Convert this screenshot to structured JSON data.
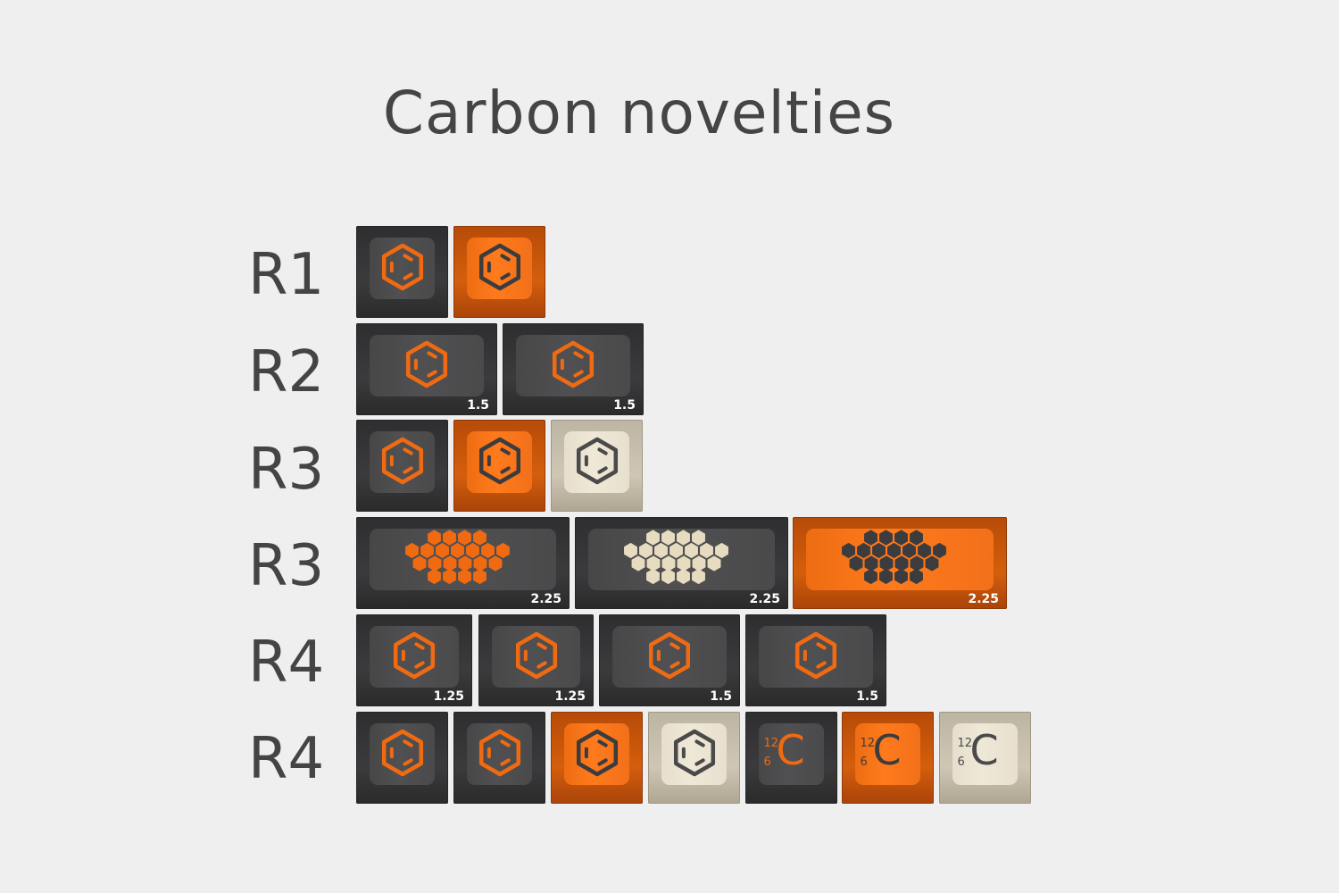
{
  "title": "Carbon novelties",
  "row_labels": [
    "R1",
    "R2",
    "R3",
    "R3",
    "R4",
    "R4"
  ],
  "keys": {
    "r1": [
      {
        "color": "dark",
        "legend": "benzene-hexagon-icon",
        "legend_color": "#f06a12"
      },
      {
        "color": "orange",
        "legend": "benzene-hexagon-icon",
        "legend_color": "#3c3c3e"
      }
    ],
    "r2": [
      {
        "color": "dark",
        "legend": "benzene-hexagon-icon",
        "legend_color": "#f06a12",
        "size": "1.5"
      },
      {
        "color": "dark",
        "legend": "benzene-hexagon-icon",
        "legend_color": "#f06a12",
        "size": "1.5"
      }
    ],
    "r3a": [
      {
        "color": "dark",
        "legend": "benzene-hexagon-icon",
        "legend_color": "#f06a12"
      },
      {
        "color": "orange",
        "legend": "benzene-hexagon-icon",
        "legend_color": "#3c3c3e"
      },
      {
        "color": "cream",
        "legend": "benzene-hexagon-icon",
        "legend_color": "#4a4a4a"
      }
    ],
    "r3b": [
      {
        "color": "dark",
        "legend": "honeycomb-icon",
        "legend_color": "#f06a12",
        "size": "2.25"
      },
      {
        "color": "dark",
        "legend": "honeycomb-icon",
        "legend_color": "#e8dcc0",
        "size": "2.25"
      },
      {
        "color": "orange",
        "legend": "honeycomb-icon",
        "legend_color": "#3c3c3e",
        "size": "2.25"
      }
    ],
    "r4a": [
      {
        "color": "dark",
        "legend": "benzene-hexagon-icon",
        "legend_color": "#f06a12",
        "size": "1.25"
      },
      {
        "color": "dark",
        "legend": "benzene-hexagon-icon",
        "legend_color": "#f06a12",
        "size": "1.25"
      },
      {
        "color": "dark",
        "legend": "benzene-hexagon-icon",
        "legend_color": "#f06a12",
        "size": "1.5"
      },
      {
        "color": "dark",
        "legend": "benzene-hexagon-icon",
        "legend_color": "#f06a12",
        "size": "1.5"
      }
    ],
    "r4b": [
      {
        "color": "dark",
        "legend": "benzene-hexagon-icon",
        "legend_color": "#f06a12"
      },
      {
        "color": "dark",
        "legend": "benzene-hexagon-icon",
        "legend_color": "#f06a12"
      },
      {
        "color": "orange",
        "legend": "benzene-hexagon-icon",
        "legend_color": "#3c3c3e"
      },
      {
        "color": "cream",
        "legend": "benzene-hexagon-icon",
        "legend_color": "#4a4a4a"
      },
      {
        "color": "dark",
        "legend": "carbon-element-icon",
        "legend_color": "#f06a12",
        "mass": "12",
        "number": "6",
        "symbol": "C",
        "symbol_color": "#f06a12"
      },
      {
        "color": "orange",
        "legend": "carbon-element-icon",
        "legend_color": "#3c3c3e",
        "mass": "12",
        "number": "6",
        "symbol": "C",
        "symbol_color": "#3c3c3e"
      },
      {
        "color": "cream",
        "legend": "carbon-element-icon",
        "legend_color": "#4a4a4a",
        "mass": "12",
        "number": "6",
        "symbol": "C",
        "symbol_color": "#4a4a4a"
      }
    ]
  }
}
